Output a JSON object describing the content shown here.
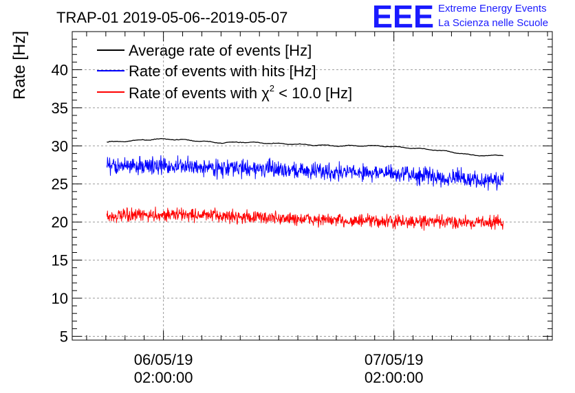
{
  "chart_data": {
    "type": "line",
    "title": "TRAP-01 2019-05-06--2019-05-07",
    "xlabel": "",
    "ylabel": "Rate [Hz]",
    "ylim": [
      4.5,
      45
    ],
    "yticks": [
      5,
      10,
      15,
      20,
      25,
      30,
      35,
      40
    ],
    "xlim": [
      -7.5,
      42.5
    ],
    "x_unit": "hours since 06/05/19 00:00",
    "xticks": [
      {
        "x": 2,
        "date": "06/05/19",
        "time": "02:00:00"
      },
      {
        "x": 26,
        "date": "07/05/19",
        "time": "02:00:00"
      }
    ],
    "grid": true,
    "legend_position": "top-left",
    "series": [
      {
        "name": "Average rate of events [Hz]",
        "color": "#000000",
        "noise": 0.08,
        "x": [
          -3.9,
          -2,
          0,
          2,
          4,
          6,
          8,
          10,
          12,
          14,
          16,
          18,
          20,
          22,
          24,
          26,
          28,
          30,
          32,
          34,
          36,
          37.4
        ],
        "y": [
          30.5,
          30.6,
          30.8,
          30.9,
          30.8,
          30.6,
          30.4,
          30.5,
          30.4,
          30.3,
          30.2,
          30.1,
          30.0,
          30.0,
          30.0,
          29.9,
          29.7,
          29.5,
          29.2,
          28.8,
          28.7,
          28.8
        ]
      },
      {
        "name": "Rate of events with hits [Hz]",
        "color": "#0000ff",
        "noise": 0.9,
        "x": [
          -3.9,
          0,
          4,
          8,
          12,
          16,
          20,
          24,
          28,
          32,
          36,
          37.4
        ],
        "y": [
          27.3,
          27.4,
          27.3,
          27.1,
          27.0,
          26.8,
          26.6,
          26.5,
          26.2,
          25.8,
          25.4,
          25.4
        ]
      },
      {
        "name": "Rate of events with χ² < 10.0 [Hz]",
        "color": "#ff0000",
        "noise": 0.7,
        "x": [
          -3.9,
          0,
          4,
          8,
          12,
          16,
          20,
          24,
          28,
          32,
          36,
          37.4
        ],
        "y": [
          20.7,
          20.9,
          21.0,
          20.8,
          20.6,
          20.4,
          20.2,
          20.1,
          20.0,
          20.0,
          20.0,
          20.0
        ]
      }
    ]
  },
  "legend": {
    "entries": [
      {
        "text": "Average rate of events [Hz]"
      },
      {
        "text": "Rate of events with hits [Hz]"
      },
      {
        "pre": "Rate of events with χ",
        "sup": "2",
        "post": " < 10.0 [Hz]"
      }
    ]
  },
  "logo": {
    "mark": "EEE",
    "line1": "Extreme Energy Events",
    "line2": "La Scienza nelle Scuole",
    "color": "#1a1aff"
  }
}
